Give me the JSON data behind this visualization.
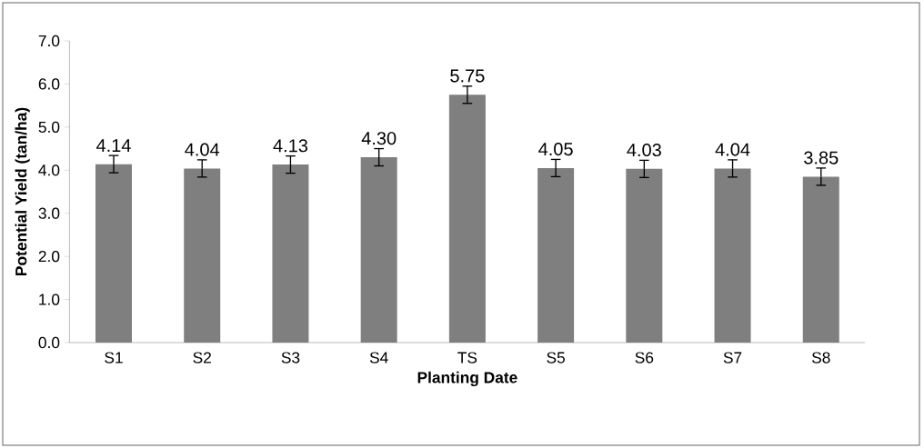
{
  "chart_data": {
    "type": "bar",
    "xlabel": "Planting Date",
    "ylabel": "Potential Yield (tan/ha)",
    "categories": [
      "S1",
      "S2",
      "S3",
      "S4",
      "TS",
      "S5",
      "S6",
      "S7",
      "S8"
    ],
    "values": [
      4.14,
      4.04,
      4.13,
      4.3,
      5.75,
      4.05,
      4.03,
      4.04,
      3.85
    ],
    "errors": [
      0.2,
      0.2,
      0.2,
      0.2,
      0.2,
      0.2,
      0.2,
      0.2,
      0.2
    ],
    "value_labels": [
      "4.14",
      "4.04",
      "4.13",
      "4.30",
      "5.75",
      "4.05",
      "4.03",
      "4.04",
      "3.85"
    ],
    "color": "#7f7f7f",
    "ylim": [
      0,
      7
    ],
    "yticks": [
      {
        "value": 0,
        "label": "0.0"
      },
      {
        "value": 1,
        "label": "1.0"
      },
      {
        "value": 2,
        "label": "2.0"
      },
      {
        "value": 3,
        "label": "3.0"
      },
      {
        "value": 4,
        "label": "4.0"
      },
      {
        "value": 5,
        "label": "5.0"
      },
      {
        "value": 6,
        "label": "6.0"
      },
      {
        "value": 7,
        "label": "7.0"
      }
    ],
    "grid": false
  }
}
